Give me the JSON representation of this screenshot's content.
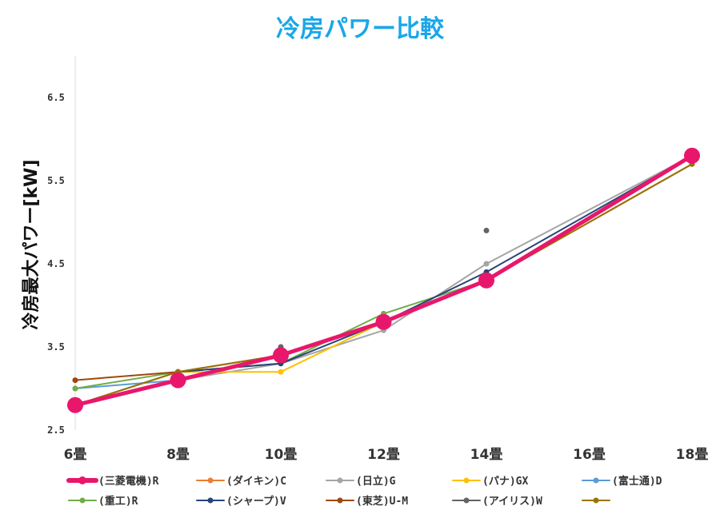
{
  "chart_data": {
    "type": "line",
    "title": "冷房パワー比較",
    "ylabel": "冷房最大パワー[kW]",
    "xlabel": "",
    "categories": [
      "6畳",
      "8畳",
      "10畳",
      "12畳",
      "14畳",
      "16畳",
      "18畳"
    ],
    "ylim": [
      2.5,
      7.0
    ],
    "yticks": [
      2.5,
      3.5,
      4.5,
      5.5,
      6.5
    ],
    "ytick_labels": [
      "2.5",
      "3.5",
      "4.5",
      "5.5",
      "6.5"
    ],
    "grid": false,
    "legend_position": "bottom",
    "series": [
      {
        "name": "(三菱電機)R",
        "color": "#e8176b",
        "emphasis": true,
        "values": [
          2.8,
          3.1,
          3.4,
          3.8,
          4.3,
          null,
          5.8
        ]
      },
      {
        "name": "(ダイキン)C",
        "color": "#ed7d31",
        "values": [
          2.8,
          3.1,
          3.4,
          3.8,
          4.3,
          null,
          5.8
        ]
      },
      {
        "name": "(日立)G",
        "color": "#a5a5a5",
        "values": [
          2.8,
          3.1,
          3.3,
          3.7,
          4.5,
          null,
          5.8
        ]
      },
      {
        "name": "(パナ)GX",
        "color": "#ffc000",
        "values": [
          2.8,
          3.2,
          3.2,
          3.8,
          4.3,
          null,
          5.8
        ]
      },
      {
        "name": "(富士通)D",
        "color": "#5b9bd5",
        "values": [
          3.0,
          3.1,
          3.4,
          3.8,
          4.3,
          null,
          5.8
        ]
      },
      {
        "name": "(重工)R",
        "color": "#70ad47",
        "values": [
          3.0,
          3.2,
          3.3,
          3.9,
          4.3,
          null,
          5.8
        ]
      },
      {
        "name": "(シャープ)V",
        "color": "#264478",
        "values": [
          2.8,
          3.2,
          3.3,
          3.8,
          4.4,
          null,
          5.8
        ]
      },
      {
        "name": "(東芝)U-M",
        "color": "#9e480e",
        "values": [
          3.1,
          3.2,
          3.4,
          3.8,
          4.3,
          null,
          5.7
        ]
      },
      {
        "name": "(アイリス)W",
        "color": "#636363",
        "markers_only": true,
        "values": [
          2.8,
          3.1,
          3.5,
          3.8,
          4.9,
          null,
          5.8
        ]
      },
      {
        "name": "",
        "color": "#997300",
        "values": [
          2.8,
          3.2,
          3.4,
          3.8,
          4.3,
          null,
          5.7
        ]
      }
    ]
  }
}
